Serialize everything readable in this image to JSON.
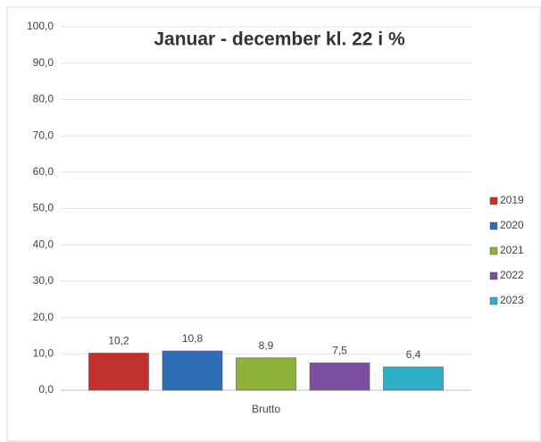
{
  "chart_data": {
    "type": "bar",
    "title": "Januar - december kl. 22 i %",
    "categories": [
      "Brutto"
    ],
    "series": [
      {
        "name": "2019",
        "color": "#c0312f",
        "values": [
          10.2
        ],
        "value_labels": [
          "10,2"
        ]
      },
      {
        "name": "2020",
        "color": "#2f6db5",
        "values": [
          10.8
        ],
        "value_labels": [
          "10,8"
        ]
      },
      {
        "name": "2021",
        "color": "#8cb23a",
        "values": [
          8.9
        ],
        "value_labels": [
          "8,9"
        ]
      },
      {
        "name": "2022",
        "color": "#7a4f9f",
        "values": [
          7.5
        ],
        "value_labels": [
          "7,5"
        ]
      },
      {
        "name": "2023",
        "color": "#2eafc7",
        "values": [
          6.4
        ],
        "value_labels": [
          "6,4"
        ]
      }
    ],
    "ylim": [
      0,
      100
    ],
    "yticks": [
      {
        "value": 0,
        "label": "0,0"
      },
      {
        "value": 10,
        "label": "10,0"
      },
      {
        "value": 20,
        "label": "20,0"
      },
      {
        "value": 30,
        "label": "30,0"
      },
      {
        "value": 40,
        "label": "40,0"
      },
      {
        "value": 50,
        "label": "50,0"
      },
      {
        "value": 60,
        "label": "60,0"
      },
      {
        "value": 70,
        "label": "70,0"
      },
      {
        "value": 80,
        "label": "80,0"
      },
      {
        "value": 90,
        "label": "90,0"
      },
      {
        "value": 100,
        "label": "100,0"
      }
    ],
    "grid": true,
    "legend": "right"
  }
}
